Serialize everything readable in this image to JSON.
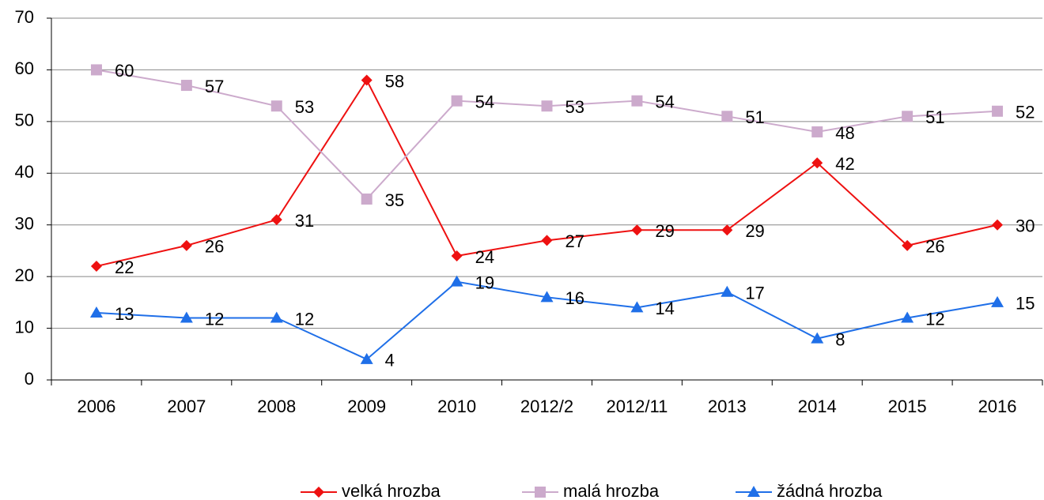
{
  "chart_data": {
    "type": "line",
    "categories": [
      "2006",
      "2007",
      "2008",
      "2009",
      "2010",
      "2012/2",
      "2012/11",
      "2013",
      "2014",
      "2015",
      "2016"
    ],
    "series": [
      {
        "name": "velká hrozba",
        "color": "#ee1111",
        "marker": "diamond",
        "values": [
          22,
          26,
          31,
          58,
          24,
          27,
          29,
          29,
          42,
          26,
          30
        ]
      },
      {
        "name": "malá hrozba",
        "color": "#ccaacc",
        "marker": "square",
        "values": [
          60,
          57,
          53,
          35,
          54,
          53,
          54,
          51,
          48,
          51,
          52
        ]
      },
      {
        "name": "žádná hrozba",
        "color": "#1f6fe8",
        "marker": "triangle",
        "values": [
          13,
          12,
          12,
          4,
          19,
          16,
          14,
          17,
          8,
          12,
          15
        ]
      }
    ],
    "ylim": [
      0,
      70
    ],
    "yticks": [
      0,
      10,
      20,
      30,
      40,
      50,
      60,
      70
    ],
    "grid": true,
    "legend": "bottom",
    "data_labels": true
  }
}
